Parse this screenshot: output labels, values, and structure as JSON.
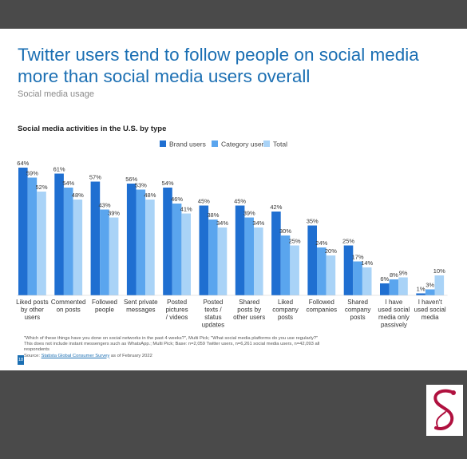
{
  "header": {
    "title_line1": "Twitter users tend to follow people on social media",
    "title_line2": "more than social media users overall",
    "subtitle": "Social media usage"
  },
  "chart_data": {
    "type": "bar",
    "title": "Social media activities in the U.S. by type",
    "legend_position": "top-right",
    "ylim": [
      0,
      70
    ],
    "categories": [
      [
        "Liked posts",
        "by other",
        "users"
      ],
      [
        "Commented",
        "on posts"
      ],
      [
        "Followed",
        "people"
      ],
      [
        "Sent private",
        "messages"
      ],
      [
        "Posted",
        "pictures",
        "/ videos"
      ],
      [
        "Posted",
        "texts /",
        "status",
        "updates"
      ],
      [
        "Shared",
        "posts by",
        "other users"
      ],
      [
        "Liked",
        "company",
        "posts"
      ],
      [
        "Followed",
        "companies"
      ],
      [
        "Shared",
        "company",
        "posts"
      ],
      [
        "I have",
        "used social",
        "media only",
        "passively"
      ],
      [
        "I haven't",
        "used social",
        "media"
      ]
    ],
    "series": [
      {
        "name": "Brand users",
        "color": "#1f6fd1",
        "values": [
          64,
          61,
          57,
          56,
          54,
          45,
          45,
          42,
          35,
          25,
          6,
          1
        ]
      },
      {
        "name": "Category users",
        "color": "#5aa5ee",
        "values": [
          59,
          54,
          43,
          53,
          46,
          38,
          39,
          30,
          24,
          17,
          8,
          3
        ]
      },
      {
        "name": "Total",
        "color": "#a9d3f7",
        "values": [
          52,
          48,
          39,
          48,
          41,
          34,
          34,
          25,
          20,
          14,
          9,
          10
        ]
      }
    ]
  },
  "footnote": {
    "line1": "\"Which of these things have you done on social networks in the past 4 weeks?\", Multi Pick; \"What social media platforms do you use regularly?\"",
    "line2": "This does not include instant messengers such as WhatsApp.; Multi Pick; Base: n=2,059 Twitter users, n=6,261 social media users, n=42,093 all",
    "line3": "respondents",
    "source_prefix": "Source: ",
    "source_link": "Statista Global Consumer Survey",
    "source_suffix": " as of February 2022"
  },
  "page_number": "18"
}
